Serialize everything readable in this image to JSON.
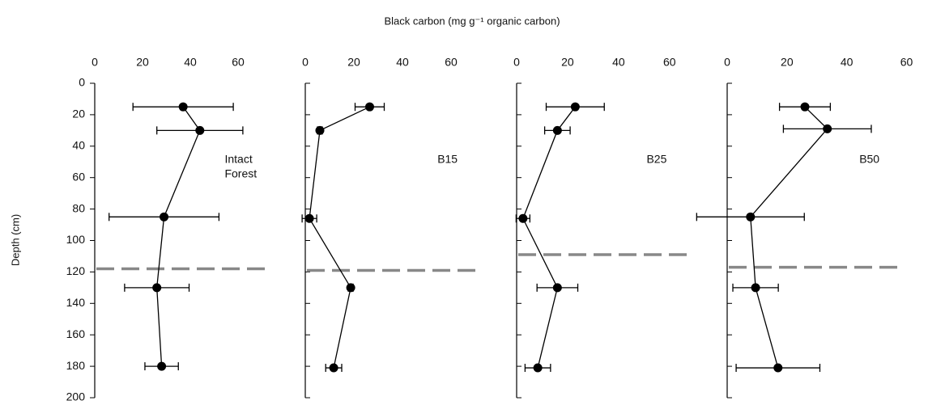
{
  "title": "Black carbon (mg g⁻¹ organic carbon)",
  "y_label": "Depth (cm)",
  "chart_data": [
    {
      "type": "line",
      "annotation": [
        "Intact",
        "Forest"
      ],
      "color": "#000000",
      "depth": [
        15,
        30,
        85,
        130,
        180
      ],
      "values": [
        37,
        44,
        29,
        26,
        28
      ],
      "errors": [
        21,
        18,
        23,
        13.5,
        7
      ],
      "xlim": [
        0,
        80
      ],
      "xticks": [
        0,
        20,
        40,
        60
      ],
      "ylim": [
        0,
        200
      ],
      "yticks": [
        0,
        20,
        40,
        60,
        80,
        100,
        120,
        140,
        160,
        180,
        200
      ],
      "reference_depth": 118
    },
    {
      "type": "line",
      "annotation": [
        "B15"
      ],
      "color": "#000000",
      "depth": [
        15,
        30,
        86,
        130,
        181
      ],
      "values": [
        26.5,
        6,
        1.7,
        18.7,
        11.7
      ],
      "errors": [
        6,
        1,
        3,
        1,
        3.3
      ],
      "xlim": [
        0,
        80
      ],
      "xticks": [
        0,
        20,
        40,
        60
      ],
      "ylim": [
        0,
        200
      ],
      "yticks": [
        0,
        20,
        40,
        60,
        80,
        100,
        120,
        140,
        160,
        180,
        200
      ],
      "reference_depth": 119
    },
    {
      "type": "line",
      "annotation": [
        "B25"
      ],
      "color": "#000000",
      "depth": [
        15,
        30,
        86,
        130,
        181
      ],
      "values": [
        23,
        16,
        2.5,
        16,
        8.3
      ],
      "errors": [
        11.4,
        5,
        2.7,
        8,
        5
      ],
      "xlim": [
        0,
        75
      ],
      "xticks": [
        0,
        20,
        40,
        60
      ],
      "ylim": [
        0,
        200
      ],
      "yticks": [
        0,
        20,
        40,
        60,
        80,
        100,
        120,
        140,
        160,
        180,
        200
      ],
      "reference_depth": 109
    },
    {
      "type": "line",
      "annotation": [
        "B50"
      ],
      "color": "#000000",
      "depth": [
        15,
        29,
        85,
        130,
        181
      ],
      "values": [
        26,
        33.5,
        7.8,
        9.5,
        17
      ],
      "errors": [
        8.5,
        14.7,
        18,
        7.6,
        14
      ],
      "xlim": [
        0,
        65
      ],
      "xticks": [
        0,
        20,
        40,
        60
      ],
      "ylim": [
        0,
        200
      ],
      "yticks": [
        0,
        20,
        40,
        60,
        80,
        100,
        120,
        140,
        160,
        180,
        200
      ],
      "reference_depth": 117
    }
  ]
}
